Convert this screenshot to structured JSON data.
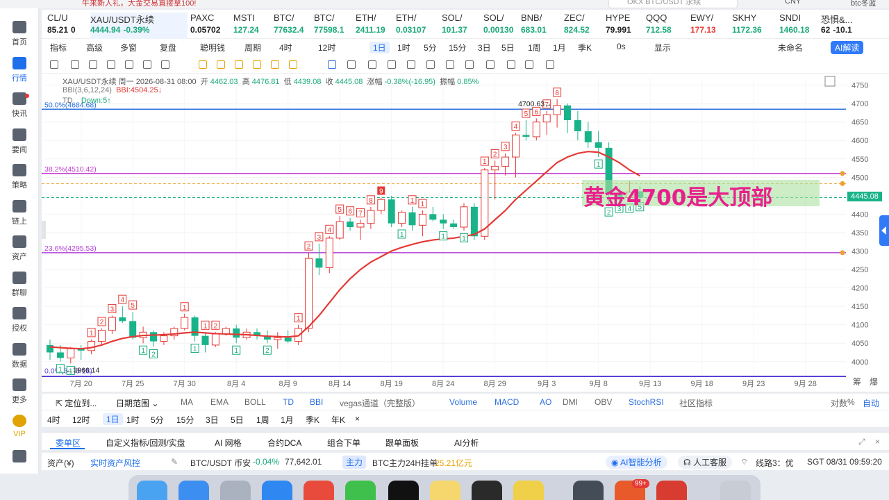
{
  "topbar": {
    "promo": "牛来新人礼，大金交易直接拿100!",
    "search_placeholder": "OKX BTC/USDT 永续",
    "search_shortcut": "/",
    "currency": "CNY",
    "user": "btc冬蓝"
  },
  "sidebar": {
    "items": [
      {
        "label": "首页",
        "icon": "home-icon"
      },
      {
        "label": "行情",
        "icon": "chart-bars-icon",
        "active": true
      },
      {
        "label": "快讯",
        "icon": "news-icon",
        "dot": true
      },
      {
        "label": "要闻",
        "icon": "article-icon"
      },
      {
        "label": "策略",
        "icon": "robot-icon"
      },
      {
        "label": "链上",
        "icon": "chain-icon"
      },
      {
        "label": "资产",
        "icon": "wallet-icon"
      },
      {
        "label": "群聊",
        "icon": "chat-icon"
      },
      {
        "label": "授权",
        "icon": "key-icon"
      },
      {
        "label": "数据",
        "icon": "data-icon"
      },
      {
        "label": "更多",
        "icon": "grid-icon"
      },
      {
        "label": "VIP",
        "icon": "vip-icon",
        "vip": true
      },
      {
        "label": "",
        "icon": "settings-icon"
      }
    ]
  },
  "tickers": [
    {
      "symbol": "CL/U",
      "price": "85.21",
      "change": "0",
      "color": "#222222"
    },
    {
      "symbol": "XAU/USDT永续",
      "price": "4444.94",
      "change": "-0.39%",
      "color": "#19a97b",
      "active": true
    },
    {
      "symbol": "PAXC",
      "price": "0.05702",
      "change": "",
      "color": "#222222"
    },
    {
      "symbol": "MSTI",
      "price": "127.24",
      "change": "",
      "color": "#19a97b"
    },
    {
      "symbol": "BTC/",
      "price": "77632.4",
      "change": "",
      "color": "#19a97b"
    },
    {
      "symbol": "BTC/",
      "price": "77598.1",
      "change": "",
      "color": "#19a97b"
    },
    {
      "symbol": "ETH/",
      "price": "2411.19",
      "change": "",
      "color": "#19a97b"
    },
    {
      "symbol": "ETH/",
      "price": "0.03107",
      "change": "",
      "color": "#19a97b"
    },
    {
      "symbol": "SOL/",
      "price": "101.37",
      "change": "",
      "color": "#19a97b"
    },
    {
      "symbol": "SOL/",
      "price": "0.00130",
      "change": "",
      "color": "#19a97b"
    },
    {
      "symbol": "BNB/",
      "price": "683.01",
      "change": "",
      "color": "#19a97b"
    },
    {
      "symbol": "ZEC/",
      "price": "824.52",
      "change": "",
      "color": "#19a97b"
    },
    {
      "symbol": "HYPE",
      "price": "79.991",
      "change": "",
      "color": "#222222"
    },
    {
      "symbol": "QQQ",
      "price": "712.58",
      "change": "",
      "color": "#19a97b"
    },
    {
      "symbol": "EWY/",
      "price": "177.13",
      "change": "",
      "color": "#e53935"
    },
    {
      "symbol": "SKHY",
      "price": "1172.36",
      "change": "",
      "color": "#19a97b"
    },
    {
      "symbol": "SNDI",
      "price": "1460.18",
      "change": "",
      "color": "#19a97b"
    },
    {
      "symbol": "恐惧&...",
      "price": "62",
      "change": "-10.1",
      "color": "#222222"
    }
  ],
  "toolbar1": {
    "items": [
      "指标",
      "高级",
      "多窗",
      "复盘",
      "聪明钱",
      "周期",
      "4时",
      "12时",
      "1日",
      "1时",
      "5分",
      "15分",
      "3日",
      "5日",
      "1周",
      "1月",
      "季K",
      "0s",
      "显示",
      "未命名"
    ],
    "selected": "1日",
    "ai_label": "AI解读"
  },
  "legend": {
    "title": "XAU/USDT永续  周一 2026-08-31 08:00",
    "open_label": "开",
    "open": "4462.03",
    "high_label": "高",
    "high": "4476.81",
    "low_label": "低",
    "low": "4439.08",
    "close_label": "收",
    "close": "4445.08",
    "chg_label": "涨幅",
    "chg": "-0.38%(-16.95)",
    "amp_label": "振幅",
    "amp": "0.85%",
    "bbi_name": "BBI(3,6,12,24)",
    "bbi_value": "BBI:4504.25↓",
    "td_name": "TD",
    "td_value": "Down:5↑"
  },
  "chart_data": {
    "type": "candlestick",
    "instrument": "XAU/USDT永续",
    "interval": "1日",
    "ylim": [
      3960,
      4770
    ],
    "y_ticks": [
      4000,
      4050,
      4100,
      4150,
      4200,
      4250,
      4300,
      4350,
      4400,
      4450,
      4500,
      4550,
      4600,
      4650,
      4700,
      4750
    ],
    "x_ticks": [
      "7月 20",
      "7月 25",
      "7月 30",
      "8月 4",
      "8月 9",
      "8月 14",
      "8月 19",
      "8月 24",
      "8月 29",
      "9月 3",
      "9月 8",
      "9月 13",
      "9月 18",
      "9月 23",
      "9月 28"
    ],
    "candles": [
      {
        "o": 4045,
        "h": 4060,
        "l": 4005,
        "c": 4025
      },
      {
        "o": 4025,
        "h": 4045,
        "l": 4000,
        "c": 4010
      },
      {
        "o": 4010,
        "h": 4040,
        "l": 3995,
        "c": 4035
      },
      {
        "o": 4035,
        "h": 4045,
        "l": 4005,
        "c": 4030
      },
      {
        "o": 4030,
        "h": 4060,
        "l": 4020,
        "c": 4055
      },
      {
        "o": 4055,
        "h": 4090,
        "l": 4045,
        "c": 4085
      },
      {
        "o": 4085,
        "h": 4125,
        "l": 4075,
        "c": 4120
      },
      {
        "o": 4120,
        "h": 4150,
        "l": 4105,
        "c": 4110
      },
      {
        "o": 4110,
        "h": 4135,
        "l": 4060,
        "c": 4065
      },
      {
        "o": 4065,
        "h": 4095,
        "l": 4050,
        "c": 4080
      },
      {
        "o": 4080,
        "h": 4085,
        "l": 4040,
        "c": 4055
      },
      {
        "o": 4055,
        "h": 4080,
        "l": 4045,
        "c": 4070
      },
      {
        "o": 4070,
        "h": 4095,
        "l": 4060,
        "c": 4090
      },
      {
        "o": 4090,
        "h": 4130,
        "l": 4085,
        "c": 4120
      },
      {
        "o": 4120,
        "h": 4125,
        "l": 4055,
        "c": 4070
      },
      {
        "o": 4070,
        "h": 4080,
        "l": 4025,
        "c": 4045
      },
      {
        "o": 4045,
        "h": 4080,
        "l": 4040,
        "c": 4075
      },
      {
        "o": 4075,
        "h": 4095,
        "l": 4070,
        "c": 4090
      },
      {
        "o": 4090,
        "h": 4100,
        "l": 4050,
        "c": 4065
      },
      {
        "o": 4065,
        "h": 4090,
        "l": 4060,
        "c": 4080
      },
      {
        "o": 4080,
        "h": 4090,
        "l": 4060,
        "c": 4070
      },
      {
        "o": 4070,
        "h": 4085,
        "l": 4050,
        "c": 4060
      },
      {
        "o": 4060,
        "h": 4080,
        "l": 4035,
        "c": 4065
      },
      {
        "o": 4065,
        "h": 4085,
        "l": 4050,
        "c": 4055
      },
      {
        "o": 4055,
        "h": 4100,
        "l": 4045,
        "c": 4090
      },
      {
        "o": 4090,
        "h": 4295,
        "l": 4080,
        "c": 4280
      },
      {
        "o": 4280,
        "h": 4320,
        "l": 4235,
        "c": 4255
      },
      {
        "o": 4255,
        "h": 4340,
        "l": 4240,
        "c": 4335
      },
      {
        "o": 4335,
        "h": 4395,
        "l": 4330,
        "c": 4380
      },
      {
        "o": 4380,
        "h": 4390,
        "l": 4355,
        "c": 4365
      },
      {
        "o": 4365,
        "h": 4385,
        "l": 4330,
        "c": 4375
      },
      {
        "o": 4375,
        "h": 4420,
        "l": 4360,
        "c": 4410
      },
      {
        "o": 4410,
        "h": 4445,
        "l": 4400,
        "c": 4440
      },
      {
        "o": 4440,
        "h": 4450,
        "l": 4365,
        "c": 4375
      },
      {
        "o": 4375,
        "h": 4410,
        "l": 4365,
        "c": 4405
      },
      {
        "o": 4405,
        "h": 4420,
        "l": 4355,
        "c": 4370
      },
      {
        "o": 4370,
        "h": 4410,
        "l": 4340,
        "c": 4400
      },
      {
        "o": 4400,
        "h": 4420,
        "l": 4380,
        "c": 4385
      },
      {
        "o": 4385,
        "h": 4400,
        "l": 4360,
        "c": 4375
      },
      {
        "o": 4375,
        "h": 4385,
        "l": 4360,
        "c": 4365
      },
      {
        "o": 4365,
        "h": 4430,
        "l": 4355,
        "c": 4420
      },
      {
        "o": 4420,
        "h": 4430,
        "l": 4330,
        "c": 4340
      },
      {
        "o": 4340,
        "h": 4525,
        "l": 4330,
        "c": 4520
      },
      {
        "o": 4520,
        "h": 4545,
        "l": 4440,
        "c": 4530
      },
      {
        "o": 4530,
        "h": 4565,
        "l": 4505,
        "c": 4555
      },
      {
        "o": 4555,
        "h": 4620,
        "l": 4500,
        "c": 4615
      },
      {
        "o": 4615,
        "h": 4655,
        "l": 4600,
        "c": 4610
      },
      {
        "o": 4610,
        "h": 4660,
        "l": 4600,
        "c": 4650
      },
      {
        "o": 4650,
        "h": 4680,
        "l": 4615,
        "c": 4670
      },
      {
        "o": 4670,
        "h": 4712,
        "l": 4635,
        "c": 4695
      },
      {
        "o": 4695,
        "h": 4700,
        "l": 4620,
        "c": 4655
      },
      {
        "o": 4655,
        "h": 4680,
        "l": 4600,
        "c": 4625
      },
      {
        "o": 4625,
        "h": 4650,
        "l": 4580,
        "c": 4595
      },
      {
        "o": 4595,
        "h": 4625,
        "l": 4555,
        "c": 4580
      },
      {
        "o": 4580,
        "h": 4595,
        "l": 4425,
        "c": 4455
      },
      {
        "o": 4455,
        "h": 4470,
        "l": 4435,
        "c": 4445
      },
      {
        "o": 4445,
        "h": 4490,
        "l": 4435,
        "c": 4460
      },
      {
        "o": 4462,
        "h": 4477,
        "l": 4439,
        "c": 4445
      }
    ],
    "bbi": [
      4040,
      4038,
      4036,
      4035,
      4038,
      4045,
      4055,
      4063,
      4068,
      4071,
      4072,
      4073,
      4075,
      4078,
      4080,
      4078,
      4076,
      4075,
      4074,
      4073,
      4071,
      4069,
      4068,
      4067,
      4070,
      4095,
      4125,
      4160,
      4195,
      4225,
      4250,
      4270,
      4285,
      4300,
      4310,
      4318,
      4325,
      4330,
      4333,
      4335,
      4340,
      4345,
      4360,
      4385,
      4410,
      4440,
      4465,
      4490,
      4515,
      4540,
      4555,
      4565,
      4570,
      4568,
      4555,
      4540,
      4520,
      4504
    ],
    "td_labels": [
      {
        "i": 2,
        "n": "1",
        "pos": "below"
      },
      {
        "i": 1,
        "n": "1",
        "pos": "below"
      },
      {
        "i": 4,
        "n": "1",
        "pos": "above"
      },
      {
        "i": 5,
        "n": "2",
        "pos": "above"
      },
      {
        "i": 6,
        "n": "3",
        "pos": "above"
      },
      {
        "i": 7,
        "n": "4",
        "pos": "above"
      },
      {
        "i": 8,
        "n": "5",
        "pos": "above"
      },
      {
        "i": 9,
        "n": "1",
        "pos": "below"
      },
      {
        "i": 10,
        "n": "2",
        "pos": "below"
      },
      {
        "i": 13,
        "n": "1",
        "pos": "above"
      },
      {
        "i": 15,
        "n": "1",
        "pos": "above"
      },
      {
        "i": 16,
        "n": "2",
        "pos": "above"
      },
      {
        "i": 14,
        "n": "1",
        "pos": "below"
      },
      {
        "i": 18,
        "n": "1",
        "pos": "below"
      },
      {
        "i": 21,
        "n": "2",
        "pos": "below"
      },
      {
        "i": 24,
        "n": "1",
        "pos": "above"
      },
      {
        "i": 25,
        "n": "2",
        "pos": "above"
      },
      {
        "i": 26,
        "n": "3",
        "pos": "above"
      },
      {
        "i": 27,
        "n": "4",
        "pos": "above"
      },
      {
        "i": 28,
        "n": "5",
        "pos": "above"
      },
      {
        "i": 29,
        "n": "6",
        "pos": "above"
      },
      {
        "i": 30,
        "n": "7",
        "pos": "above"
      },
      {
        "i": 31,
        "n": "8",
        "pos": "above"
      },
      {
        "i": 32,
        "n": "9",
        "pos": "above",
        "red": true
      },
      {
        "i": 35,
        "n": "1",
        "pos": "above"
      },
      {
        "i": 36,
        "n": "1",
        "pos": "above"
      },
      {
        "i": 34,
        "n": "1",
        "pos": "below"
      },
      {
        "i": 38,
        "n": "1",
        "pos": "below"
      },
      {
        "i": 40,
        "n": "1",
        "pos": "below"
      },
      {
        "i": 42,
        "n": "1",
        "pos": "above"
      },
      {
        "i": 43,
        "n": "2",
        "pos": "above"
      },
      {
        "i": 44,
        "n": "3",
        "pos": "above"
      },
      {
        "i": 45,
        "n": "4",
        "pos": "above"
      },
      {
        "i": 46,
        "n": "5",
        "pos": "above"
      },
      {
        "i": 47,
        "n": "6",
        "pos": "above"
      },
      {
        "i": 48,
        "n": "7",
        "pos": "above"
      },
      {
        "i": 49,
        "n": "8",
        "pos": "above"
      },
      {
        "i": 53,
        "n": "1",
        "pos": "below"
      },
      {
        "i": 54,
        "n": "2",
        "pos": "below"
      },
      {
        "i": 55,
        "n": "3",
        "pos": "below"
      },
      {
        "i": 56,
        "n": "4",
        "pos": "below"
      },
      {
        "i": 57,
        "n": "5",
        "pos": "below"
      }
    ],
    "fib_levels": [
      {
        "label": "50.0%(4684.68)",
        "price": 4684.68,
        "color": "#2b6fde"
      },
      {
        "label": "38.2%(4510.42)",
        "price": 4510.42,
        "color": "#c43bd1"
      },
      {
        "label": "23.6%(4295.53)",
        "price": 4295.53,
        "color": "#b33fd8"
      },
      {
        "label": "0.0%(3963.18)",
        "price": 3963.18,
        "color": "#5b3fd8"
      }
    ],
    "extra_lines": [
      {
        "price": 4483,
        "color": "#f0a030",
        "dash": true
      },
      {
        "price": 4445.08,
        "color": "#19b38a",
        "dash": true
      }
    ],
    "high_marker": {
      "label": "4700.63",
      "i": 49,
      "price": 4700.63
    },
    "low_marker": {
      "label": "3966.14",
      "i": 1,
      "price": 3966.14
    },
    "last_price": "4445.08",
    "annotation": "黄金4700是大顶部",
    "right_labels": [
      "筹",
      "爆"
    ]
  },
  "indicator_bar": {
    "items": [
      "MA",
      "EMA",
      "BOLL",
      "TD",
      "BBI",
      "vegas通道（完整版）",
      "Volume",
      "MACD",
      "AO",
      "DMI",
      "OBV",
      "StochRSI",
      "社区指标",
      "对数",
      "%",
      "自动"
    ],
    "locate": "定位到...",
    "range": "日期范围"
  },
  "tf_bar": {
    "items": [
      "4时",
      "12时",
      "1日",
      "1时",
      "5分",
      "15分",
      "3日",
      "5日",
      "1周",
      "1月",
      "季K",
      "年K",
      "×"
    ],
    "selected": "1日"
  },
  "tabs": {
    "items": [
      "委单区",
      "自定义指标/回测/实盘",
      "AI 网格",
      "合约DCA",
      "组合下单",
      "跟单面板",
      "AI分析"
    ],
    "selected": "委单区"
  },
  "status": {
    "asset": "资产(¥)",
    "risk": "实时资产风控",
    "pair": "BTC/USDT 币安",
    "pair_chg": "-0.04%",
    "pair_price": "77,642.01",
    "main_badge": "主力",
    "main_text": "BTC主力24H挂单",
    "main_amount": "25.21亿元",
    "ai": "AI智能分析",
    "service": "人工客服",
    "line": "线路3：优",
    "time": "SGT 08/31 09:59:20"
  },
  "dock": {
    "badge": "99+"
  }
}
